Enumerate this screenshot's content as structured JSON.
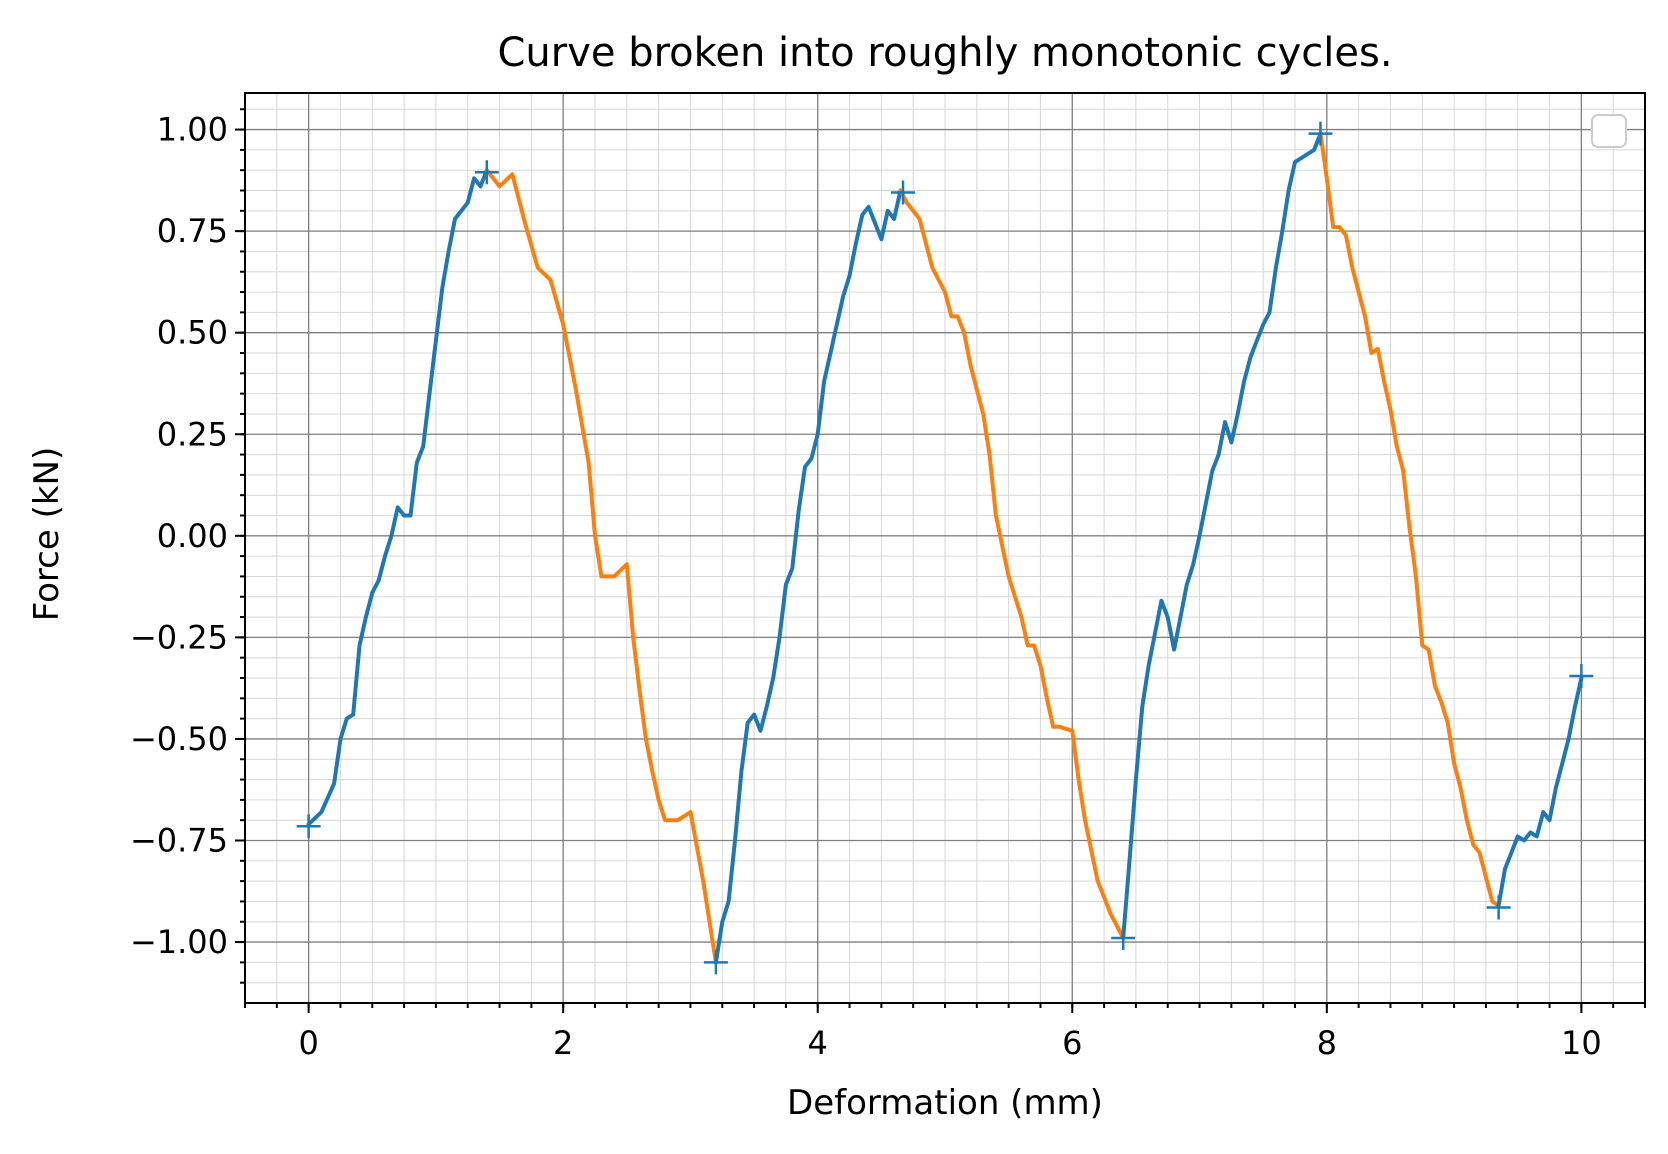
{
  "chart_data": {
    "type": "line",
    "title": "Curve broken into roughly monotonic cycles.",
    "xlabel": "Deformation (mm)",
    "ylabel": "Force (kN)",
    "xlim": [
      -0.5,
      10.5
    ],
    "ylim": [
      -1.15,
      1.09
    ],
    "xticks": [
      0,
      2,
      4,
      6,
      8,
      10
    ],
    "xtick_labels": [
      "0",
      "2",
      "4",
      "6",
      "8",
      "10"
    ],
    "yticks": [
      1.0,
      0.75,
      0.5,
      0.25,
      0.0,
      -0.25,
      -0.5,
      -0.75,
      -1.0
    ],
    "ytick_labels": [
      "1.00",
      "0.75",
      "0.50",
      "0.25",
      "0.00",
      "−0.25",
      "−0.50",
      "−0.75",
      "−1.00"
    ],
    "grid": true,
    "minor_grid": true,
    "legend": "top-right",
    "colors": {
      "loading": "#1f77b4",
      "unloading": "#ff7f0e"
    },
    "segments": [
      {
        "kind": "loading",
        "x": [
          0.0,
          0.1,
          0.2,
          0.25,
          0.3,
          0.35,
          0.4,
          0.45,
          0.5,
          0.55,
          0.6,
          0.65,
          0.7,
          0.75,
          0.8,
          0.85,
          0.9,
          0.95,
          1.0,
          1.05,
          1.1,
          1.15,
          1.2,
          1.25,
          1.3,
          1.35,
          1.4
        ],
        "y": [
          -0.71,
          -0.68,
          -0.61,
          -0.5,
          -0.45,
          -0.44,
          -0.27,
          -0.2,
          -0.14,
          -0.11,
          -0.05,
          0.0,
          0.07,
          0.05,
          0.05,
          0.18,
          0.22,
          0.35,
          0.48,
          0.61,
          0.7,
          0.78,
          0.8,
          0.82,
          0.88,
          0.86,
          0.9
        ]
      },
      {
        "kind": "unloading",
        "x": [
          1.4,
          1.5,
          1.6,
          1.7,
          1.8,
          1.9,
          2.0,
          2.1,
          2.2,
          2.25,
          2.3,
          2.4,
          2.5,
          2.55,
          2.6,
          2.65,
          2.7,
          2.75,
          2.8,
          2.9,
          3.0,
          3.1,
          3.15,
          3.2
        ],
        "y": [
          0.9,
          0.86,
          0.89,
          0.77,
          0.66,
          0.63,
          0.52,
          0.36,
          0.18,
          0.0,
          -0.1,
          -0.1,
          -0.07,
          -0.25,
          -0.38,
          -0.5,
          -0.58,
          -0.65,
          -0.7,
          -0.7,
          -0.68,
          -0.85,
          -0.95,
          -1.05
        ]
      },
      {
        "kind": "loading",
        "x": [
          3.2,
          3.25,
          3.3,
          3.35,
          3.4,
          3.45,
          3.5,
          3.55,
          3.6,
          3.65,
          3.7,
          3.75,
          3.8,
          3.85,
          3.9,
          3.95,
          4.0,
          4.05,
          4.1,
          4.15,
          4.2,
          4.25,
          4.3,
          4.35,
          4.4,
          4.45,
          4.5,
          4.55,
          4.6,
          4.65
        ],
        "y": [
          -1.05,
          -0.95,
          -0.9,
          -0.75,
          -0.58,
          -0.46,
          -0.44,
          -0.48,
          -0.42,
          -0.35,
          -0.25,
          -0.12,
          -0.08,
          0.06,
          0.17,
          0.19,
          0.25,
          0.38,
          0.45,
          0.52,
          0.59,
          0.64,
          0.72,
          0.79,
          0.81,
          0.77,
          0.73,
          0.8,
          0.78,
          0.85
        ]
      },
      {
        "kind": "unloading",
        "x": [
          4.65,
          4.7,
          4.8,
          4.85,
          4.9,
          5.0,
          5.05,
          5.1,
          5.15,
          5.2,
          5.25,
          5.3,
          5.35,
          5.4,
          5.5,
          5.55,
          5.6,
          5.65,
          5.7,
          5.75,
          5.8,
          5.85,
          5.9,
          6.0,
          6.05,
          6.1,
          6.2,
          6.3,
          6.4
        ],
        "y": [
          0.85,
          0.82,
          0.78,
          0.72,
          0.66,
          0.6,
          0.54,
          0.54,
          0.5,
          0.42,
          0.36,
          0.3,
          0.2,
          0.05,
          -0.1,
          -0.15,
          -0.2,
          -0.27,
          -0.27,
          -0.32,
          -0.4,
          -0.47,
          -0.47,
          -0.48,
          -0.6,
          -0.7,
          -0.85,
          -0.93,
          -0.99
        ]
      },
      {
        "kind": "loading",
        "x": [
          6.4,
          6.45,
          6.5,
          6.55,
          6.6,
          6.65,
          6.7,
          6.75,
          6.8,
          6.85,
          6.9,
          6.95,
          7.0,
          7.05,
          7.1,
          7.15,
          7.2,
          7.25,
          7.3,
          7.35,
          7.4,
          7.45,
          7.5,
          7.55,
          7.6,
          7.65,
          7.7,
          7.75,
          7.8,
          7.85,
          7.9,
          7.95
        ],
        "y": [
          -0.99,
          -0.8,
          -0.6,
          -0.42,
          -0.32,
          -0.24,
          -0.16,
          -0.2,
          -0.28,
          -0.2,
          -0.12,
          -0.07,
          0.0,
          0.08,
          0.16,
          0.2,
          0.28,
          0.23,
          0.3,
          0.38,
          0.44,
          0.48,
          0.52,
          0.55,
          0.66,
          0.75,
          0.85,
          0.92,
          0.93,
          0.94,
          0.95,
          0.99
        ]
      },
      {
        "kind": "unloading",
        "x": [
          7.95,
          8.0,
          8.05,
          8.1,
          8.15,
          8.2,
          8.3,
          8.35,
          8.4,
          8.45,
          8.5,
          8.55,
          8.6,
          8.65,
          8.7,
          8.75,
          8.8,
          8.85,
          8.9,
          8.95,
          9.0,
          9.05,
          9.1,
          9.15,
          9.2,
          9.25,
          9.3,
          9.35
        ],
        "y": [
          0.99,
          0.88,
          0.76,
          0.76,
          0.74,
          0.66,
          0.54,
          0.45,
          0.46,
          0.38,
          0.31,
          0.22,
          0.16,
          0.02,
          -0.1,
          -0.27,
          -0.28,
          -0.37,
          -0.41,
          -0.46,
          -0.56,
          -0.62,
          -0.7,
          -0.76,
          -0.78,
          -0.84,
          -0.9,
          -0.91
        ]
      },
      {
        "kind": "loading",
        "x": [
          9.35,
          9.4,
          9.45,
          9.5,
          9.55,
          9.6,
          9.65,
          9.7,
          9.75,
          9.8,
          9.85,
          9.9,
          9.95,
          10.0
        ],
        "y": [
          -0.91,
          -0.82,
          -0.78,
          -0.74,
          -0.75,
          -0.73,
          -0.74,
          -0.68,
          -0.7,
          -0.62,
          -0.56,
          -0.5,
          -0.42,
          -0.35
        ]
      }
    ],
    "markers": {
      "x": [
        0.0,
        1.4,
        3.2,
        4.67,
        6.4,
        7.95,
        9.35,
        10.0
      ],
      "y": [
        -0.715,
        0.895,
        -1.05,
        0.845,
        -0.99,
        0.99,
        -0.915,
        -0.345
      ]
    }
  }
}
